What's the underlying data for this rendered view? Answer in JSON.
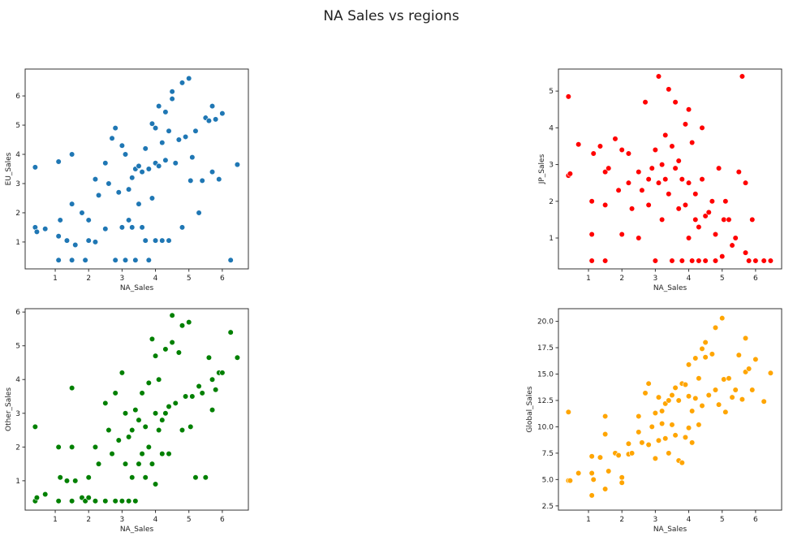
{
  "title": "NA Sales vs regions",
  "na_sales": [
    0.4,
    0.4,
    0.45,
    0.7,
    1.1,
    1.1,
    1.1,
    1.15,
    1.35,
    1.5,
    1.5,
    1.5,
    1.6,
    1.8,
    1.9,
    2.0,
    2.0,
    2.2,
    2.2,
    2.3,
    2.5,
    2.5,
    2.6,
    2.7,
    2.8,
    2.8,
    2.9,
    3.0,
    3.0,
    3.1,
    3.1,
    3.2,
    3.2,
    3.3,
    3.3,
    3.4,
    3.4,
    3.5,
    3.5,
    3.6,
    3.6,
    3.7,
    3.7,
    3.8,
    3.8,
    3.9,
    3.9,
    4.0,
    4.0,
    4.0,
    4.1,
    4.1,
    4.2,
    4.2,
    4.3,
    4.3,
    4.4,
    4.4,
    4.5,
    4.5,
    4.6,
    4.7,
    4.8,
    4.8,
    4.9,
    5.0,
    5.05,
    5.1,
    5.2,
    5.3,
    5.4,
    5.5,
    5.6,
    5.7,
    5.7,
    5.8,
    5.9,
    6.0,
    6.25,
    6.45
  ],
  "chart_data": [
    {
      "type": "scatter",
      "xlabel": "NA_Sales",
      "ylabel": "EU_Sales",
      "color": "#1f77b4",
      "xlim": [
        0.1,
        6.78
      ],
      "ylim": [
        0.08,
        6.92
      ],
      "xticks": [
        1,
        2,
        3,
        4,
        5,
        6
      ],
      "yticks": [
        1,
        2,
        3,
        4,
        5,
        6
      ],
      "y": [
        3.56,
        1.5,
        1.35,
        1.45,
        3.75,
        1.2,
        0.38,
        1.75,
        1.05,
        4.0,
        2.3,
        0.38,
        0.9,
        2.0,
        0.38,
        1.75,
        1.05,
        3.15,
        1.0,
        2.6,
        3.7,
        1.45,
        3.0,
        4.55,
        4.9,
        0.38,
        2.7,
        4.3,
        1.5,
        4.0,
        0.38,
        2.8,
        1.75,
        3.2,
        1.5,
        3.5,
        0.38,
        3.6,
        2.3,
        3.4,
        1.5,
        4.2,
        1.05,
        3.5,
        0.38,
        5.05,
        2.5,
        3.7,
        1.05,
        4.9,
        5.65,
        3.6,
        4.4,
        1.05,
        5.45,
        3.8,
        4.8,
        1.05,
        6.15,
        5.9,
        3.7,
        4.5,
        6.45,
        1.5,
        4.6,
        6.6,
        3.1,
        3.9,
        4.8,
        2.0,
        3.1,
        5.25,
        5.15,
        5.65,
        3.4,
        5.2,
        3.15,
        5.4,
        0.38,
        3.65
      ]
    },
    {
      "type": "scatter",
      "xlabel": "NA_Sales",
      "ylabel": "JP_Sales",
      "color": "#ff0000",
      "xlim": [
        0.1,
        6.78
      ],
      "ylim": [
        0.16,
        5.6
      ],
      "xticks": [
        1,
        2,
        3,
        4,
        5,
        6
      ],
      "yticks": [
        1,
        2,
        3,
        4,
        5
      ],
      "y": [
        4.85,
        2.7,
        2.75,
        3.55,
        1.1,
        2.0,
        0.38,
        3.3,
        3.5,
        2.8,
        1.9,
        0.38,
        2.9,
        3.7,
        2.3,
        1.1,
        3.4,
        3.3,
        2.5,
        1.8,
        2.8,
        1.0,
        2.3,
        4.7,
        2.6,
        1.9,
        2.9,
        3.4,
        0.38,
        5.4,
        2.5,
        3.0,
        1.5,
        3.8,
        2.6,
        5.05,
        2.2,
        3.5,
        0.38,
        4.7,
        2.9,
        3.1,
        1.8,
        2.6,
        0.38,
        4.1,
        1.9,
        4.5,
        2.5,
        1.0,
        3.6,
        0.38,
        2.2,
        1.5,
        1.3,
        0.38,
        4.0,
        2.6,
        1.6,
        0.38,
        1.7,
        2.0,
        1.1,
        0.38,
        2.9,
        0.5,
        1.5,
        2.0,
        1.5,
        0.8,
        1.0,
        2.8,
        5.4,
        2.5,
        0.6,
        0.38,
        1.5,
        0.38,
        0.38,
        0.38
      ]
    },
    {
      "type": "scatter",
      "xlabel": "NA_Sales",
      "ylabel": "Other_Sales",
      "color": "#008000",
      "xlim": [
        0.1,
        6.78
      ],
      "ylim": [
        0.13,
        6.1
      ],
      "xticks": [
        1,
        2,
        3,
        4,
        5,
        6
      ],
      "yticks": [
        1,
        2,
        3,
        4,
        5,
        6
      ],
      "y": [
        2.6,
        0.4,
        0.5,
        0.6,
        2.0,
        0.4,
        0.4,
        1.1,
        1.0,
        3.75,
        2.0,
        0.4,
        1.0,
        0.5,
        0.4,
        1.1,
        0.5,
        2.0,
        0.4,
        1.5,
        3.3,
        0.4,
        2.5,
        1.8,
        3.6,
        0.4,
        2.2,
        4.2,
        0.4,
        3.0,
        1.5,
        2.3,
        0.4,
        2.5,
        1.1,
        3.1,
        0.4,
        2.8,
        1.5,
        3.6,
        1.8,
        2.6,
        1.1,
        3.9,
        2.0,
        5.2,
        1.5,
        3.0,
        0.9,
        4.7,
        2.5,
        4.0,
        2.8,
        1.8,
        4.9,
        3.0,
        3.2,
        1.8,
        5.1,
        5.9,
        3.3,
        4.8,
        5.6,
        2.5,
        3.5,
        5.7,
        2.6,
        3.5,
        1.1,
        3.8,
        3.6,
        1.1,
        4.65,
        3.1,
        4.0,
        3.7,
        4.2,
        4.2,
        5.4,
        4.65
      ]
    },
    {
      "type": "scatter",
      "xlabel": "NA_Sales",
      "ylabel": "Global_Sales",
      "color": "#ffa500",
      "xlim": [
        0.1,
        6.78
      ],
      "ylim": [
        2.1,
        21.2
      ],
      "xticks": [
        1,
        2,
        3,
        4,
        5,
        6
      ],
      "yticks": [
        2.5,
        5.0,
        7.5,
        10.0,
        12.5,
        15.0,
        17.5,
        20.0
      ],
      "y": [
        11.4,
        4.9,
        4.9,
        5.6,
        7.2,
        5.6,
        3.5,
        5.0,
        7.1,
        11.0,
        9.3,
        4.1,
        5.8,
        7.5,
        7.3,
        5.2,
        4.7,
        8.4,
        7.4,
        7.5,
        9.5,
        11.0,
        8.5,
        13.2,
        14.1,
        8.3,
        10.0,
        11.3,
        7.0,
        12.8,
        8.7,
        11.5,
        10.3,
        12.2,
        8.9,
        12.5,
        7.5,
        13.0,
        10.2,
        13.7,
        9.2,
        12.5,
        6.8,
        14.1,
        6.6,
        14.0,
        9.0,
        12.9,
        9.9,
        15.9,
        11.5,
        8.5,
        12.7,
        16.5,
        10.2,
        14.6,
        17.4,
        12.0,
        16.6,
        18.0,
        13.0,
        16.9,
        19.4,
        13.5,
        12.1,
        20.3,
        14.5,
        11.4,
        14.6,
        12.8,
        13.5,
        16.8,
        12.6,
        18.4,
        15.2,
        15.5,
        13.5,
        16.4,
        12.4,
        15.1
      ]
    }
  ]
}
